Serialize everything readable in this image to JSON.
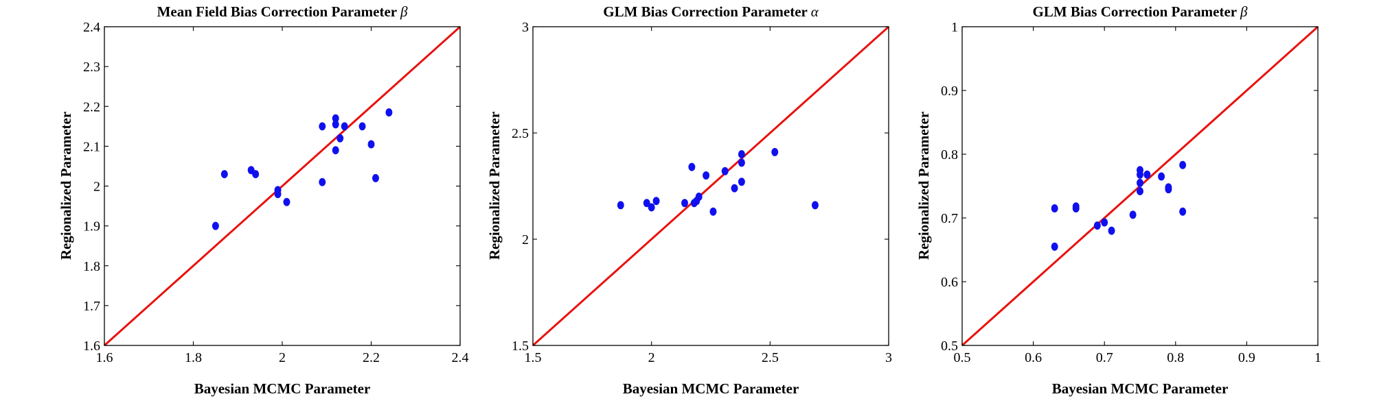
{
  "chart_data": [
    {
      "type": "scatter",
      "title": "Mean Field Bias Correction Parameter ",
      "title_symbol": "β",
      "xlabel": "Bayesian MCMC Parameter",
      "ylabel": "Regionalized Parameter",
      "xlim": [
        1.6,
        2.4
      ],
      "ylim": [
        1.6,
        2.4
      ],
      "xticks": [
        "1.6",
        "1.8",
        "2",
        "2.2",
        "2.4"
      ],
      "yticks": [
        "1.6",
        "1.7",
        "1.8",
        "1.9",
        "2",
        "2.1",
        "2.2",
        "2.3",
        "2.4"
      ],
      "reference_line": "y = x",
      "x": [
        1.85,
        1.87,
        1.93,
        1.94,
        1.99,
        1.99,
        2.01,
        2.09,
        2.09,
        2.12,
        2.12,
        2.12,
        2.13,
        2.14,
        2.18,
        2.2,
        2.21,
        2.24
      ],
      "y": [
        1.9,
        2.03,
        2.04,
        2.03,
        1.99,
        1.98,
        1.96,
        2.01,
        2.15,
        2.17,
        2.155,
        2.09,
        2.12,
        2.15,
        2.15,
        2.105,
        2.02,
        2.185
      ]
    },
    {
      "type": "scatter",
      "title": "GLM Bias Correction Parameter ",
      "title_symbol": "α",
      "xlabel": "Bayesian MCMC Parameter",
      "ylabel": "Regionalized Parameter",
      "xlim": [
        1.5,
        3
      ],
      "ylim": [
        1.5,
        3
      ],
      "xticks": [
        "1.5",
        "2",
        "2.5",
        "3"
      ],
      "yticks": [
        "1.5",
        "2",
        "2.5",
        "3"
      ],
      "reference_line": "y = x",
      "x": [
        1.87,
        1.98,
        2.0,
        2.02,
        2.14,
        2.17,
        2.18,
        2.19,
        2.2,
        2.23,
        2.26,
        2.31,
        2.35,
        2.38,
        2.38,
        2.38,
        2.52,
        2.69
      ],
      "y": [
        2.16,
        2.17,
        2.15,
        2.18,
        2.17,
        2.34,
        2.17,
        2.18,
        2.2,
        2.3,
        2.13,
        2.32,
        2.24,
        2.4,
        2.36,
        2.27,
        2.41,
        2.16
      ]
    },
    {
      "type": "scatter",
      "title": "GLM Bias Correction Parameter ",
      "title_symbol": "β",
      "xlabel": "Bayesian MCMC Parameter",
      "ylabel": "Regionalized Parameter",
      "xlim": [
        0.5,
        1
      ],
      "ylim": [
        0.5,
        1
      ],
      "xticks": [
        "0.5",
        "0.6",
        "0.7",
        "0.8",
        "0.9",
        "1"
      ],
      "yticks": [
        "0.5",
        "0.6",
        "0.7",
        "0.8",
        "0.9",
        "1"
      ],
      "reference_line": "y = x",
      "x": [
        0.63,
        0.63,
        0.66,
        0.66,
        0.69,
        0.7,
        0.71,
        0.74,
        0.75,
        0.75,
        0.75,
        0.75,
        0.76,
        0.78,
        0.79,
        0.79,
        0.81,
        0.81
      ],
      "y": [
        0.655,
        0.715,
        0.715,
        0.718,
        0.688,
        0.693,
        0.68,
        0.705,
        0.775,
        0.768,
        0.755,
        0.742,
        0.768,
        0.765,
        0.748,
        0.745,
        0.783,
        0.71
      ]
    }
  ]
}
